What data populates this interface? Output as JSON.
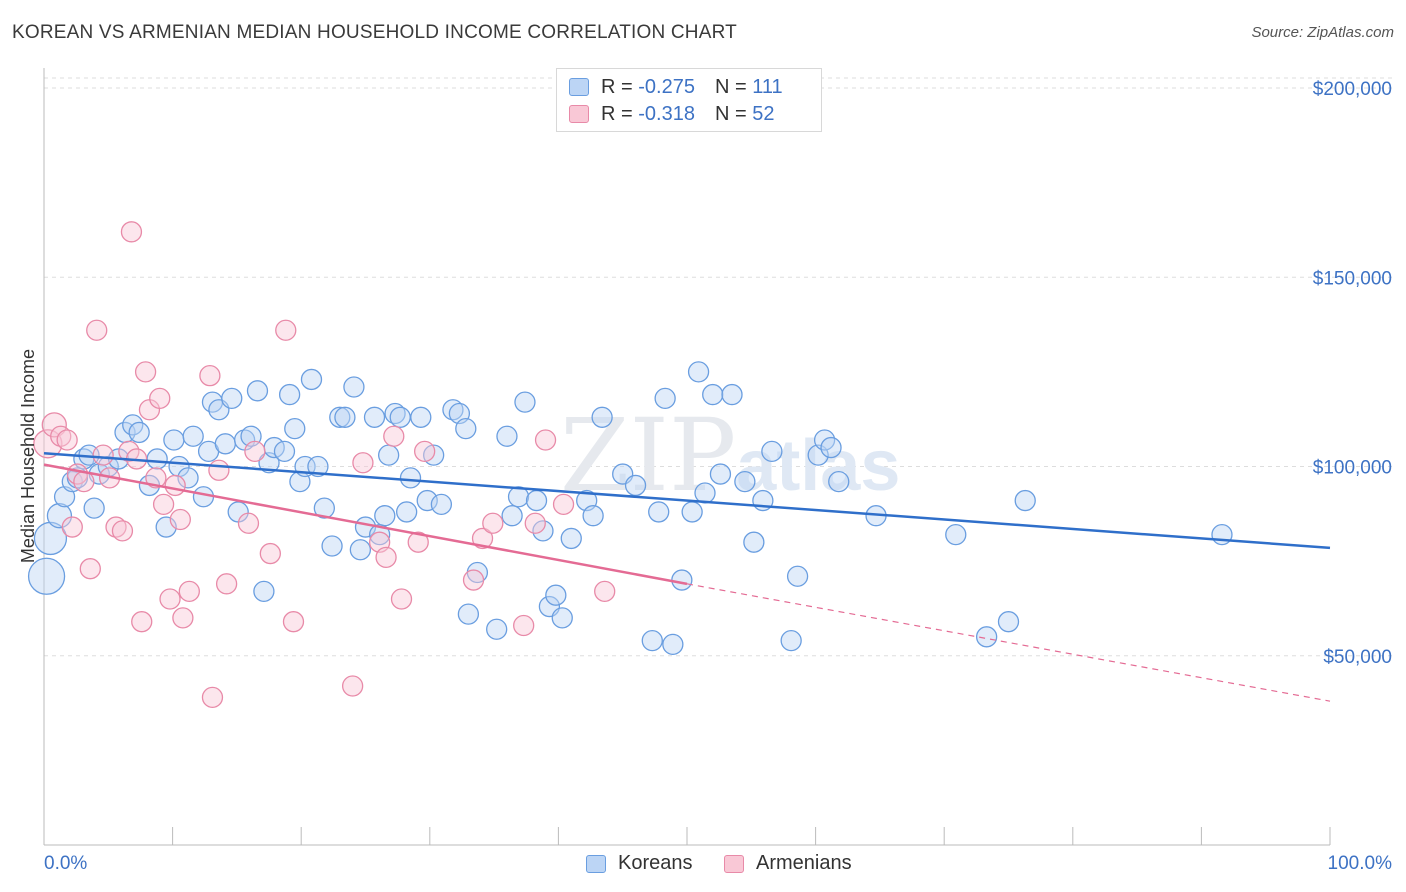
{
  "title": "KOREAN VS ARMENIAN MEDIAN HOUSEHOLD INCOME CORRELATION CHART",
  "source": "Source: ZipAtlas.com",
  "watermark": "ZIPatlas",
  "legend": {
    "rows": [
      {
        "r_label": "R =",
        "r_value": "-0.275",
        "n_label": "N =",
        "n_value": "111"
      },
      {
        "r_label": "R =",
        "r_value": "-0.318",
        "n_label": "N =",
        "n_value": "52"
      }
    ]
  },
  "bottom_legend": {
    "koreans": "Koreans",
    "armenians": "Armenians"
  },
  "colors": {
    "korean_fill": "#bcd5f5",
    "korean_stroke": "#6a9ee0",
    "korean_line": "#2f6fca",
    "armenian_fill": "#f9c8d6",
    "armenian_stroke": "#e88aa8",
    "armenian_line": "#e46b94",
    "tick_text": "#3d72c4"
  },
  "chart_data": {
    "type": "scatter",
    "title": "KOREAN VS ARMENIAN MEDIAN HOUSEHOLD INCOME CORRELATION CHART",
    "ylabel": "Median Household Income",
    "xlim": [
      0,
      100
    ],
    "ylim": [
      0,
      210000
    ],
    "x_tick_labels": [
      "0.0%",
      "100.0%"
    ],
    "y_ticks": [
      {
        "value": 50000,
        "label": "$50,000"
      },
      {
        "value": 100000,
        "label": "$100,000"
      },
      {
        "value": 150000,
        "label": "$150,000"
      },
      {
        "value": 200000,
        "label": "$200,000"
      }
    ],
    "series": [
      {
        "name": "Koreans",
        "r": -0.275,
        "n": 111,
        "trend": {
          "x": [
            0,
            100
          ],
          "y": [
            103500,
            78500
          ]
        },
        "points": [
          [
            0.2,
            71000,
            1.8
          ],
          [
            0.5,
            81000,
            1.6
          ],
          [
            1.2,
            87000,
            1.2
          ],
          [
            1.6,
            92000,
            1
          ],
          [
            2.2,
            96000,
            1
          ],
          [
            2.6,
            97000,
            1
          ],
          [
            3.1,
            102000,
            1
          ],
          [
            3.5,
            103000,
            1
          ],
          [
            3.9,
            89000,
            1
          ],
          [
            4.3,
            98000,
            1
          ],
          [
            5.0,
            100000,
            1
          ],
          [
            5.8,
            102000,
            1
          ],
          [
            6.3,
            109000,
            1
          ],
          [
            6.9,
            111000,
            1
          ],
          [
            7.4,
            109000,
            1
          ],
          [
            8.2,
            95000,
            1
          ],
          [
            8.8,
            102000,
            1
          ],
          [
            9.5,
            84000,
            1
          ],
          [
            10.1,
            107000,
            1
          ],
          [
            10.5,
            100000,
            1
          ],
          [
            11.2,
            97000,
            1
          ],
          [
            11.6,
            108000,
            1
          ],
          [
            12.4,
            92000,
            1
          ],
          [
            12.8,
            104000,
            1
          ],
          [
            13.1,
            117000,
            1
          ],
          [
            13.6,
            115000,
            1
          ],
          [
            14.1,
            106000,
            1
          ],
          [
            14.6,
            118000,
            1
          ],
          [
            15.1,
            88000,
            1
          ],
          [
            15.6,
            107000,
            1
          ],
          [
            16.1,
            108000,
            1
          ],
          [
            16.6,
            120000,
            1
          ],
          [
            17.1,
            67000,
            1
          ],
          [
            17.5,
            101000,
            1
          ],
          [
            17.9,
            105000,
            1
          ],
          [
            18.7,
            104000,
            1
          ],
          [
            19.1,
            119000,
            1
          ],
          [
            19.5,
            110000,
            1
          ],
          [
            19.9,
            96000,
            1
          ],
          [
            20.3,
            100000,
            1
          ],
          [
            20.8,
            123000,
            1
          ],
          [
            21.3,
            100000,
            1
          ],
          [
            21.8,
            89000,
            1
          ],
          [
            22.4,
            79000,
            1
          ],
          [
            23.0,
            113000,
            1
          ],
          [
            23.4,
            113000,
            1
          ],
          [
            24.1,
            121000,
            1
          ],
          [
            24.6,
            78000,
            1
          ],
          [
            25.0,
            84000,
            1
          ],
          [
            25.7,
            113000,
            1
          ],
          [
            26.1,
            82000,
            1
          ],
          [
            26.5,
            87000,
            1
          ],
          [
            26.8,
            103000,
            1
          ],
          [
            27.3,
            114000,
            1
          ],
          [
            27.7,
            113000,
            1
          ],
          [
            28.2,
            88000,
            1
          ],
          [
            28.5,
            97000,
            1
          ],
          [
            29.3,
            113000,
            1
          ],
          [
            29.8,
            91000,
            1
          ],
          [
            30.3,
            103000,
            1
          ],
          [
            30.9,
            90000,
            1
          ],
          [
            31.8,
            115000,
            1
          ],
          [
            32.3,
            114000,
            1
          ],
          [
            32.8,
            110000,
            1
          ],
          [
            33.0,
            61000,
            1
          ],
          [
            33.7,
            72000,
            1
          ],
          [
            35.2,
            57000,
            1
          ],
          [
            36.0,
            108000,
            1
          ],
          [
            36.4,
            87000,
            1
          ],
          [
            36.9,
            92000,
            1
          ],
          [
            37.4,
            117000,
            1
          ],
          [
            38.3,
            91000,
            1
          ],
          [
            38.8,
            83000,
            1
          ],
          [
            39.3,
            63000,
            1
          ],
          [
            39.8,
            66000,
            1
          ],
          [
            40.3,
            60000,
            1
          ],
          [
            41.0,
            81000,
            1
          ],
          [
            42.2,
            91000,
            1
          ],
          [
            42.7,
            87000,
            1
          ],
          [
            43.4,
            113000,
            1
          ],
          [
            45.0,
            98000,
            1
          ],
          [
            46.0,
            95000,
            1
          ],
          [
            47.3,
            54000,
            1
          ],
          [
            47.8,
            88000,
            1
          ],
          [
            48.3,
            118000,
            1
          ],
          [
            48.9,
            53000,
            1
          ],
          [
            49.6,
            70000,
            1
          ],
          [
            50.4,
            88000,
            1
          ],
          [
            50.9,
            125000,
            1
          ],
          [
            51.4,
            93000,
            1
          ],
          [
            52.0,
            119000,
            1
          ],
          [
            52.6,
            98000,
            1
          ],
          [
            53.5,
            119000,
            1
          ],
          [
            54.5,
            96000,
            1
          ],
          [
            55.2,
            80000,
            1
          ],
          [
            55.9,
            91000,
            1
          ],
          [
            56.6,
            104000,
            1
          ],
          [
            58.1,
            54000,
            1
          ],
          [
            58.6,
            71000,
            1
          ],
          [
            60.2,
            103000,
            1
          ],
          [
            60.7,
            107000,
            1
          ],
          [
            61.2,
            105000,
            1
          ],
          [
            61.8,
            96000,
            1
          ],
          [
            64.7,
            87000,
            1
          ],
          [
            70.9,
            82000,
            1
          ],
          [
            73.3,
            55000,
            1
          ],
          [
            75.0,
            59000,
            1
          ],
          [
            76.3,
            91000,
            1
          ],
          [
            91.6,
            82000,
            1
          ]
        ]
      },
      {
        "name": "Armenians",
        "r": -0.318,
        "n": 52,
        "trend": {
          "x": [
            0,
            50
          ],
          "y": [
            100500,
            69000
          ]
        },
        "trend_dashed": {
          "x": [
            50,
            100
          ],
          "y": [
            69000,
            38000
          ]
        },
        "points": [
          [
            0.3,
            106000,
            1.4
          ],
          [
            0.8,
            111000,
            1.2
          ],
          [
            1.3,
            108000,
            1
          ],
          [
            1.8,
            107000,
            1
          ],
          [
            2.2,
            84000,
            1
          ],
          [
            2.6,
            98000,
            1
          ],
          [
            3.1,
            96000,
            1
          ],
          [
            3.6,
            73000,
            1
          ],
          [
            4.1,
            136000,
            1
          ],
          [
            4.6,
            103000,
            1
          ],
          [
            5.1,
            97000,
            1
          ],
          [
            5.6,
            84000,
            1
          ],
          [
            6.1,
            83000,
            1
          ],
          [
            6.6,
            104000,
            1
          ],
          [
            6.8,
            162000,
            1
          ],
          [
            7.2,
            102000,
            1
          ],
          [
            7.6,
            59000,
            1
          ],
          [
            7.9,
            125000,
            1
          ],
          [
            8.2,
            115000,
            1
          ],
          [
            8.7,
            97000,
            1
          ],
          [
            9.0,
            118000,
            1
          ],
          [
            9.3,
            90000,
            1
          ],
          [
            9.8,
            65000,
            1
          ],
          [
            10.2,
            95000,
            1
          ],
          [
            10.6,
            86000,
            1
          ],
          [
            10.8,
            60000,
            1
          ],
          [
            11.3,
            67000,
            1
          ],
          [
            12.9,
            124000,
            1
          ],
          [
            13.1,
            39000,
            1
          ],
          [
            13.6,
            99000,
            1
          ],
          [
            14.2,
            69000,
            1
          ],
          [
            15.9,
            85000,
            1
          ],
          [
            16.4,
            104000,
            1
          ],
          [
            17.6,
            77000,
            1
          ],
          [
            18.8,
            136000,
            1
          ],
          [
            19.4,
            59000,
            1
          ],
          [
            24.0,
            42000,
            1
          ],
          [
            24.8,
            101000,
            1
          ],
          [
            26.1,
            80000,
            1
          ],
          [
            26.6,
            76000,
            1
          ],
          [
            27.2,
            108000,
            1
          ],
          [
            27.8,
            65000,
            1
          ],
          [
            29.1,
            80000,
            1
          ],
          [
            29.6,
            104000,
            1
          ],
          [
            33.4,
            70000,
            1
          ],
          [
            34.1,
            81000,
            1
          ],
          [
            34.9,
            85000,
            1
          ],
          [
            37.3,
            58000,
            1
          ],
          [
            38.2,
            85000,
            1
          ],
          [
            39.0,
            107000,
            1
          ],
          [
            40.4,
            90000,
            1
          ],
          [
            43.6,
            67000,
            1
          ]
        ]
      }
    ]
  }
}
